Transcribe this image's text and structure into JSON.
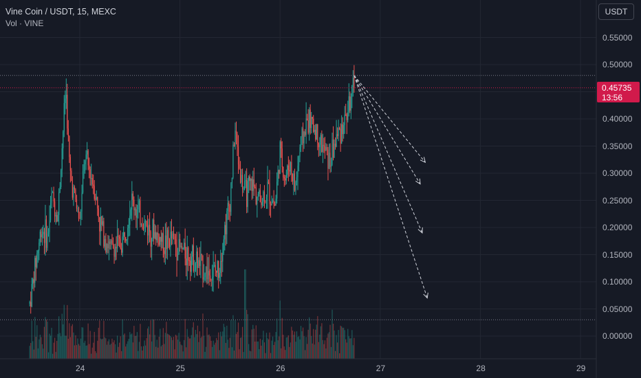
{
  "legend": {
    "title": "Vine Coin / USDT, 15, MEXC",
    "volume_label": "Vol · VINE"
  },
  "price_axis": {
    "unit_button": "USDT",
    "ticks": [
      "0.55000",
      "0.50000",
      "0.45000",
      "0.40000",
      "0.35000",
      "0.30000",
      "0.25000",
      "0.20000",
      "0.15000",
      "0.10000",
      "0.05000",
      "0.00000"
    ]
  },
  "time_axis": {
    "ticks": [
      "24",
      "25",
      "26",
      "27",
      "28",
      "29"
    ]
  },
  "current_price": {
    "value": "0.45735",
    "countdown": "13:56"
  },
  "colors": {
    "background": "#161a25",
    "grid": "#232733",
    "up": "#26a69a",
    "down": "#ef5350",
    "price_tag": "#d11a4b",
    "text": "#b2b5be"
  },
  "chart_data": {
    "type": "candlestick",
    "symbol": "Vine Coin / USDT",
    "interval": "15",
    "exchange": "MEXC",
    "x_tick_labels": [
      "24",
      "25",
      "26",
      "27",
      "28",
      "29"
    ],
    "y_tick_labels": [
      "0.55000",
      "0.50000",
      "0.45000",
      "0.40000",
      "0.35000",
      "0.30000",
      "0.25000",
      "0.20000",
      "0.15000",
      "0.10000",
      "0.05000",
      "0.00000"
    ],
    "ylim": [
      -0.035,
      0.6
    ],
    "price_path": {
      "day": [
        23.5,
        23.58,
        23.62,
        23.68,
        23.72,
        23.78,
        23.82,
        23.86,
        23.9,
        24.0,
        24.05,
        24.14,
        24.2,
        24.3,
        24.42,
        24.52,
        24.6,
        24.68,
        24.75,
        24.85,
        24.92,
        25.0,
        25.1,
        25.2,
        25.3,
        25.38,
        25.45,
        25.5,
        25.55,
        25.6,
        25.65,
        25.72,
        25.8,
        25.88,
        25.95,
        26.0,
        26.05,
        26.1,
        26.15,
        26.2,
        26.28,
        26.35,
        26.42,
        26.5,
        26.55,
        26.6,
        26.65,
        26.7,
        26.74
      ],
      "price": [
        0.06,
        0.16,
        0.2,
        0.18,
        0.26,
        0.22,
        0.34,
        0.46,
        0.3,
        0.21,
        0.33,
        0.28,
        0.21,
        0.16,
        0.17,
        0.25,
        0.22,
        0.2,
        0.19,
        0.17,
        0.18,
        0.16,
        0.15,
        0.13,
        0.115,
        0.12,
        0.2,
        0.25,
        0.38,
        0.3,
        0.26,
        0.28,
        0.25,
        0.27,
        0.24,
        0.34,
        0.29,
        0.32,
        0.27,
        0.35,
        0.4,
        0.38,
        0.35,
        0.32,
        0.36,
        0.38,
        0.4,
        0.43,
        0.457
      ]
    },
    "horizontal_lines": [
      0.48,
      0.03
    ],
    "projection_arrows": {
      "from": {
        "day": 26.74,
        "price": 0.48
      },
      "to": [
        {
          "day": 27.45,
          "price": 0.32
        },
        {
          "day": 27.4,
          "price": 0.28
        },
        {
          "day": 27.42,
          "price": 0.19
        },
        {
          "day": 27.47,
          "price": 0.07
        }
      ]
    },
    "volume": {
      "relative_max_day": 25.65
    },
    "grid": true
  }
}
